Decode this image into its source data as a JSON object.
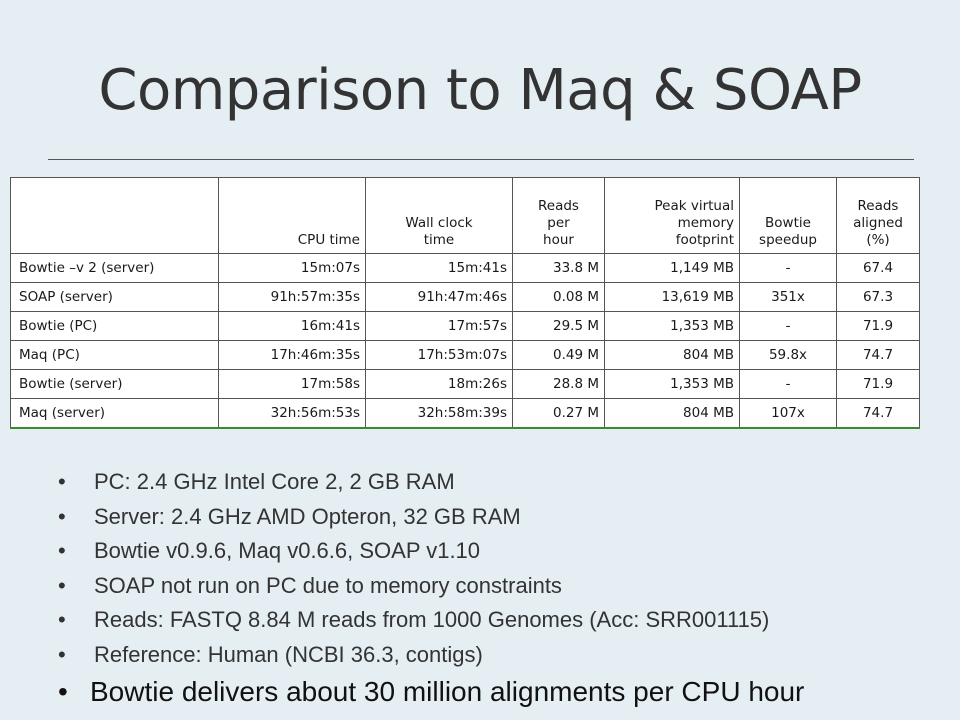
{
  "title": "Comparison to Maq & SOAP",
  "table": {
    "headers": [
      "",
      "CPU time",
      "Wall clock\ntime",
      "Reads\nper\nhour",
      "Peak virtual\nmemory\nfootprint",
      "Bowtie\nspeedup",
      "Reads\naligned\n(%)"
    ],
    "rows": [
      [
        "Bowtie –v 2 (server)",
        "15m:07s",
        "15m:41s",
        "33.8 M",
        "1,149 MB",
        "-",
        "67.4"
      ],
      [
        "SOAP (server)",
        "91h:57m:35s",
        "91h:47m:46s",
        "0.08 M",
        "13,619 MB",
        "351x",
        "67.3"
      ],
      [
        "Bowtie (PC)",
        "16m:41s",
        "17m:57s",
        "29.5 M",
        "1,353 MB",
        "-",
        "71.9"
      ],
      [
        "Maq (PC)",
        "17h:46m:35s",
        "17h:53m:07s",
        "0.49 M",
        "804 MB",
        "59.8x",
        "74.7"
      ],
      [
        "Bowtie (server)",
        "17m:58s",
        "18m:26s",
        "28.8 M",
        "1,353 MB",
        "-",
        "71.9"
      ],
      [
        "Maq (server)",
        "32h:56m:53s",
        "32h:58m:39s",
        "0.27 M",
        "804 MB",
        "107x",
        "74.7"
      ]
    ]
  },
  "bullets": [
    "PC: 2.4 GHz Intel Core 2, 2 GB RAM",
    "Server: 2.4 GHz AMD Opteron, 32 GB RAM",
    "Bowtie v0.9.6, Maq v0.6.6, SOAP v1.10",
    "SOAP not run on PC due to memory constraints",
    "Reads: FASTQ 8.84 M reads from 1000 Genomes (Acc: SRR001115)",
    "Reference: Human (NCBI 36.3, contigs)"
  ],
  "conclusion": "Bowtie delivers about 30 million alignments per CPU hour",
  "colors": {
    "background": "#e4eef3",
    "table_bottom_rule": "#3b8a2c"
  }
}
